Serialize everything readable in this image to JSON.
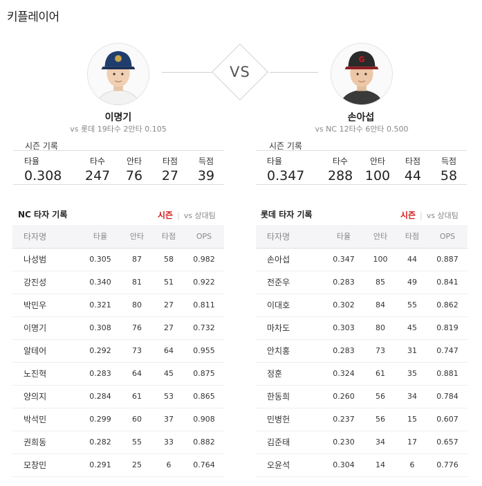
{
  "page_title": "키플레이어",
  "vs_label": "VS",
  "left_player": {
    "name": "이명기",
    "matchup": "vs 롯데   19타수 2안타 0.105",
    "season_label": "시즌 기록",
    "stats": [
      {
        "label": "타율",
        "value": "0.308"
      },
      {
        "label": "타수",
        "value": "247"
      },
      {
        "label": "안타",
        "value": "76"
      },
      {
        "label": "타점",
        "value": "27"
      },
      {
        "label": "득점",
        "value": "39"
      }
    ],
    "cap_color": "#1f3e6e"
  },
  "right_player": {
    "name": "손아섭",
    "matchup": "vs NC   12타수 6안타 0.500",
    "season_label": "시즌 기록",
    "stats": [
      {
        "label": "타율",
        "value": "0.347"
      },
      {
        "label": "타수",
        "value": "288"
      },
      {
        "label": "안타",
        "value": "100"
      },
      {
        "label": "타점",
        "value": "44"
      },
      {
        "label": "득점",
        "value": "58"
      }
    ],
    "cap_color": "#8a1a22"
  },
  "left_table": {
    "title": "NC 타자 기록",
    "tab_season": "시즌",
    "tab_vs": "vs 상대팀",
    "headers": [
      "타자명",
      "타율",
      "안타",
      "타점",
      "OPS"
    ],
    "rows": [
      [
        "나성범",
        "0.305",
        "87",
        "58",
        "0.982"
      ],
      [
        "강진성",
        "0.340",
        "81",
        "51",
        "0.922"
      ],
      [
        "박민우",
        "0.321",
        "80",
        "27",
        "0.811"
      ],
      [
        "이명기",
        "0.308",
        "76",
        "27",
        "0.732"
      ],
      [
        "알테어",
        "0.292",
        "73",
        "64",
        "0.955"
      ],
      [
        "노진혁",
        "0.283",
        "64",
        "45",
        "0.875"
      ],
      [
        "양의지",
        "0.284",
        "61",
        "53",
        "0.865"
      ],
      [
        "박석민",
        "0.299",
        "60",
        "37",
        "0.908"
      ],
      [
        "권희동",
        "0.282",
        "55",
        "33",
        "0.882"
      ],
      [
        "모창민",
        "0.291",
        "25",
        "6",
        "0.764"
      ]
    ]
  },
  "right_table": {
    "title": "롯데 타자 기록",
    "tab_season": "시즌",
    "tab_vs": "vs 상대팀",
    "headers": [
      "타자명",
      "타율",
      "안타",
      "타점",
      "OPS"
    ],
    "rows": [
      [
        "손아섭",
        "0.347",
        "100",
        "44",
        "0.887"
      ],
      [
        "전준우",
        "0.283",
        "85",
        "49",
        "0.841"
      ],
      [
        "이대호",
        "0.302",
        "84",
        "55",
        "0.862"
      ],
      [
        "마차도",
        "0.303",
        "80",
        "45",
        "0.819"
      ],
      [
        "안치홍",
        "0.283",
        "73",
        "31",
        "0.747"
      ],
      [
        "정훈",
        "0.324",
        "61",
        "35",
        "0.881"
      ],
      [
        "한동희",
        "0.260",
        "56",
        "34",
        "0.784"
      ],
      [
        "민병헌",
        "0.237",
        "56",
        "15",
        "0.607"
      ],
      [
        "김준태",
        "0.230",
        "34",
        "17",
        "0.657"
      ],
      [
        "오윤석",
        "0.304",
        "14",
        "6",
        "0.776"
      ]
    ]
  },
  "accent_color": "#d6191c"
}
